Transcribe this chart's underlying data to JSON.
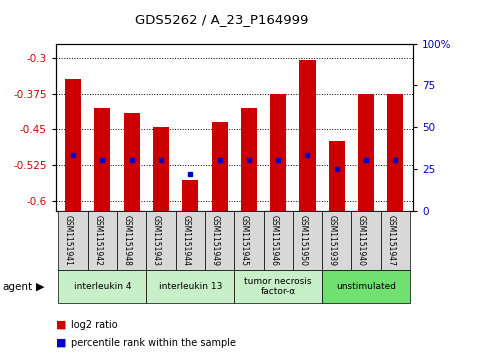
{
  "title": "GDS5262 / A_23_P164999",
  "samples": [
    "GSM1151941",
    "GSM1151942",
    "GSM1151948",
    "GSM1151943",
    "GSM1151944",
    "GSM1151949",
    "GSM1151945",
    "GSM1151946",
    "GSM1151950",
    "GSM1151939",
    "GSM1151940",
    "GSM1151947"
  ],
  "log2_ratio": [
    -0.345,
    -0.405,
    -0.415,
    -0.445,
    -0.555,
    -0.435,
    -0.405,
    -0.375,
    -0.305,
    -0.475,
    -0.375,
    -0.375
  ],
  "percentile": [
    33,
    30,
    30,
    30,
    22,
    30,
    30,
    30,
    33,
    25,
    30,
    30
  ],
  "agents": [
    {
      "label": "interleukin 4",
      "count": 3,
      "color": "#c8f0c8"
    },
    {
      "label": "interleukin 13",
      "count": 3,
      "color": "#c8f0c8"
    },
    {
      "label": "tumor necrosis\nfactor-α",
      "count": 3,
      "color": "#c8f0c8"
    },
    {
      "label": "unstimulated",
      "count": 3,
      "color": "#70e070"
    }
  ],
  "ylim_left": [
    -0.62,
    -0.27
  ],
  "yticks_left": [
    -0.6,
    -0.525,
    -0.45,
    -0.375,
    -0.3
  ],
  "ytick_labels_left": [
    "-0.6",
    "-0.525",
    "-0.45",
    "-0.375",
    "-0.3"
  ],
  "yticks_right": [
    0,
    25,
    50,
    75,
    100
  ],
  "bar_color": "#cc0000",
  "dot_color": "#0000cc",
  "bg_color": "#d8d8d8",
  "left_tick_color": "#cc0000",
  "right_tick_color": "#0000bb",
  "agent_label": "agent",
  "legend_log2": "log2 ratio",
  "legend_pct": "percentile rank within the sample"
}
